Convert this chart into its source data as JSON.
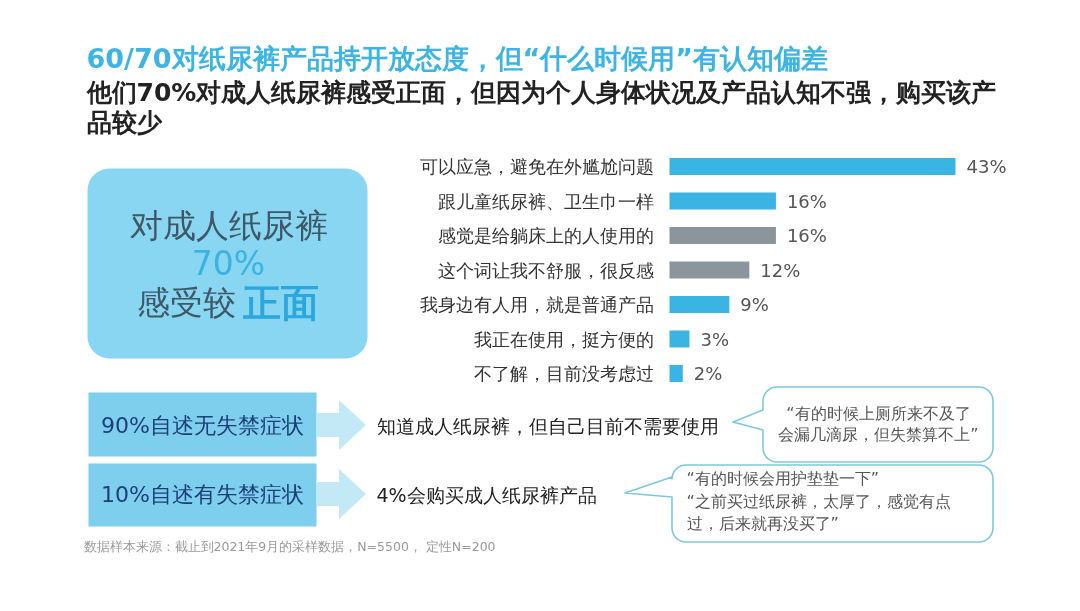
{
  "chart_data": {
    "type": "bar",
    "orientation": "horizontal",
    "title": "60/70对纸尿裤产品持开放态度，但“什么时候用”有认知偏差",
    "subtitle": "他们70%对成人纸尿裤感受正面，但因为个人身体状况及产品认知不强，购买该产品较少",
    "categories": [
      "可以应急，避免在外尴尬问题",
      "跟儿童纸尿裤、卫生巾一样",
      "感觉是给躺床上的人使用的",
      "这个词让我不舒服，很反感",
      "我身边有人用，就是普通产品",
      "我正在使用，挺方便的",
      "不了解，目前没考虑过"
    ],
    "values": [
      43,
      16,
      16,
      12,
      9,
      3,
      2
    ],
    "colors": [
      "#3ab4e2",
      "#3ab4e2",
      "#8c959b",
      "#8c959b",
      "#3ab4e2",
      "#3ab4e2",
      "#3ab4e2"
    ],
    "value_labels": [
      "43%",
      "16%",
      "16%",
      "12%",
      "9%",
      "3%",
      "2%"
    ],
    "annotations": [
      "对成人纸尿裤",
      "70%",
      "感受较",
      "正面",
      "90%自述无失禁症状",
      "知道成人纸尿裤，但自己目前不需要使用",
      "“有的时候上厕所来不及了",
      "会漏几滴尿，但失禁算不上”",
      "10%自述有失禁症状",
      "4%会购买成人纸尿裤产品",
      "“有的时候会用护垫垫一下”",
      "“之前买过纸尿裤，太厚了，感觉有点",
      "过，后来就再没买了”",
      "数据样本来源：截止到2021年9月的采样数据，N=5500， 定性N=200"
    ]
  }
}
